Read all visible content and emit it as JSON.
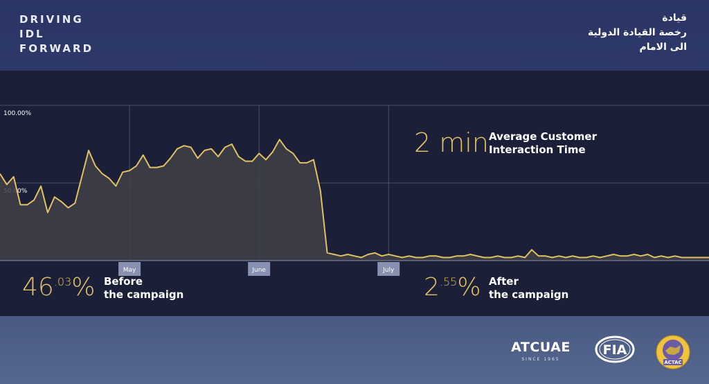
{
  "brand": {
    "en_lines": [
      "DRIVING",
      "IDL",
      "FORWARD"
    ],
    "ar_lines": [
      "قيادة",
      "رخصة القيادة الدولية",
      "الى الامام"
    ]
  },
  "stats": {
    "interaction": {
      "value": "2 min",
      "label_line1": "Average Customer",
      "label_line2": "Interaction Time"
    },
    "before": {
      "main": "46",
      "sup": ".03",
      "unit": "%",
      "label_line1": "Before",
      "label_line2": "the campaign"
    },
    "after": {
      "main": "2",
      "sup": ".55",
      "unit": "%",
      "label_line1": "After",
      "label_line2": "the campaign"
    }
  },
  "logos": {
    "atcuae_name": "ATCUAE",
    "atcuae_since": "SINCE 1965",
    "fia_text": "FIA",
    "actac_text": "ACTAC"
  },
  "colors": {
    "accent": "#e3c163",
    "panel": "#1b1f38",
    "grid": "#4a5070",
    "area_fill": "#3f4146",
    "month_tag": "#8892b0"
  },
  "chart_data": {
    "type": "area",
    "ylim": [
      0,
      100
    ],
    "ytick_labels": [
      {
        "value": 100,
        "label": "100.00%"
      },
      {
        "value": 50,
        "label": "50.00%"
      }
    ],
    "month_labels": [
      {
        "index": 19,
        "label": "May"
      },
      {
        "index": 38,
        "label": "June"
      },
      {
        "index": 57,
        "label": "July"
      }
    ],
    "grid": true,
    "values": [
      56,
      49,
      54,
      36,
      36,
      39,
      48,
      31,
      41,
      38,
      34,
      37,
      54,
      71,
      61,
      56,
      53,
      48,
      57,
      58,
      61,
      68,
      60,
      60,
      61,
      66,
      72,
      74,
      73,
      66,
      71,
      72,
      67,
      73,
      75,
      67,
      64,
      64,
      69,
      65,
      70,
      78,
      72,
      69,
      63,
      63,
      65,
      45,
      5,
      4,
      3,
      4,
      3,
      2,
      4,
      5,
      3,
      4,
      3,
      2,
      3,
      2,
      2,
      3,
      3,
      2,
      2,
      3,
      3,
      4,
      3,
      2,
      2,
      3,
      2,
      2,
      3,
      2,
      7,
      3,
      3,
      2,
      3,
      2,
      3,
      2,
      2,
      3,
      2,
      3,
      4,
      3,
      3,
      4,
      3,
      4,
      2,
      3,
      2,
      3,
      2,
      2,
      2,
      2,
      2
    ]
  }
}
